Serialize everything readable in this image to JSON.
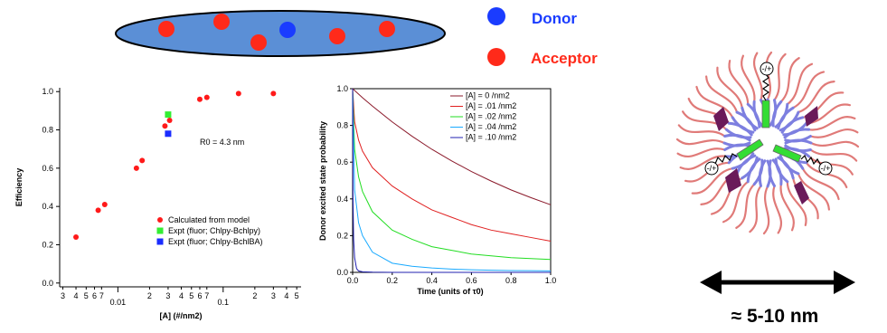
{
  "legend_top": {
    "donor_label": "Donor",
    "acceptor_label": "Acceptor",
    "donor_color": "#1a3cff",
    "acceptor_color": "#ff2a1a"
  },
  "micelle": {
    "size_label": "≈ 5-10 nm",
    "charge_labels": [
      "-/+",
      "-/+",
      "-/+"
    ]
  },
  "chart_data": [
    {
      "type": "scatter",
      "xlabel": "[A] (#/nm2)",
      "ylabel": "Efficiency",
      "xscale": "log",
      "xlim": [
        0.0028,
        0.55
      ],
      "ylim": [
        -0.02,
        1.02
      ],
      "x_tick_labels": [
        "3",
        "4",
        "5",
        "6",
        "7",
        "0.01",
        "2",
        "3",
        "4",
        "5",
        "6",
        "7",
        "0.1",
        "2",
        "3",
        "4",
        "5"
      ],
      "y_tick_labels": [
        "0.0",
        "0.2",
        "0.4",
        "0.6",
        "0.8",
        "1.0"
      ],
      "annotation": "R0 = 4.3 nm",
      "series": [
        {
          "name": "Calculated from model",
          "color": "#ff1a1a",
          "marker": "circle",
          "x": [
            0.004,
            0.0065,
            0.0075,
            0.015,
            0.017,
            0.028,
            0.031,
            0.06,
            0.07,
            0.14,
            0.3
          ],
          "y": [
            0.24,
            0.38,
            0.41,
            0.6,
            0.64,
            0.82,
            0.85,
            0.96,
            0.97,
            0.99,
            0.99
          ]
        },
        {
          "name": "Expt (fluor; Chlpy-Bchlpy)",
          "color": "#33ee33",
          "marker": "square",
          "x": [
            0.03
          ],
          "y": [
            0.88
          ]
        },
        {
          "name": "Expt (fluor; Chlpy-BchlBA)",
          "color": "#1a2cff",
          "marker": "square",
          "x": [
            0.03
          ],
          "y": [
            0.78
          ]
        }
      ]
    },
    {
      "type": "line",
      "xlabel": "Time (units of τ0)",
      "ylabel": "Donor excited state probability",
      "xlim": [
        0,
        1.0
      ],
      "ylim": [
        0,
        1.0
      ],
      "x_tick_labels": [
        "0.0",
        "0.2",
        "0.4",
        "0.6",
        "0.8",
        "1.0"
      ],
      "y_tick_labels": [
        "0.0",
        "0.2",
        "0.4",
        "0.6",
        "0.8",
        "1.0"
      ],
      "series": [
        {
          "name": "[A] = 0 /nm2",
          "color": "#8b1a2b",
          "x": [
            0,
            0.05,
            0.1,
            0.2,
            0.3,
            0.4,
            0.5,
            0.6,
            0.7,
            0.8,
            0.9,
            1.0
          ],
          "y": [
            1.0,
            0.951,
            0.905,
            0.819,
            0.741,
            0.67,
            0.607,
            0.549,
            0.497,
            0.449,
            0.407,
            0.368
          ]
        },
        {
          "name": "[A] = .01 /nm2",
          "color": "#e02020",
          "x": [
            0,
            0.01,
            0.03,
            0.05,
            0.1,
            0.2,
            0.3,
            0.4,
            0.5,
            0.6,
            0.7,
            0.8,
            0.9,
            1.0
          ],
          "y": [
            1.0,
            0.82,
            0.72,
            0.66,
            0.57,
            0.47,
            0.4,
            0.34,
            0.3,
            0.26,
            0.23,
            0.21,
            0.19,
            0.17
          ]
        },
        {
          "name": "[A] = .02 /nm2",
          "color": "#22dd22",
          "x": [
            0,
            0.01,
            0.03,
            0.05,
            0.1,
            0.2,
            0.3,
            0.4,
            0.5,
            0.6,
            0.7,
            0.8,
            0.9,
            1.0
          ],
          "y": [
            1.0,
            0.67,
            0.52,
            0.44,
            0.33,
            0.23,
            0.18,
            0.14,
            0.12,
            0.1,
            0.09,
            0.08,
            0.075,
            0.07
          ]
        },
        {
          "name": "[A] = .04 /nm2",
          "color": "#1aaaff",
          "x": [
            0,
            0.01,
            0.03,
            0.05,
            0.1,
            0.2,
            0.3,
            0.4,
            0.5,
            0.6,
            0.7,
            0.8,
            0.9,
            1.0
          ],
          "y": [
            1.0,
            0.45,
            0.27,
            0.2,
            0.11,
            0.05,
            0.033,
            0.024,
            0.018,
            0.014,
            0.012,
            0.01,
            0.009,
            0.008
          ]
        },
        {
          "name": "[A] = .10 /nm2",
          "color": "#2020b0",
          "x": [
            0,
            0.002,
            0.005,
            0.01,
            0.02,
            0.03,
            0.05,
            0.1,
            0.2,
            1.0
          ],
          "y": [
            1.0,
            0.4,
            0.18,
            0.08,
            0.02,
            0.008,
            0.003,
            0.001,
            0,
            0
          ]
        }
      ]
    }
  ]
}
